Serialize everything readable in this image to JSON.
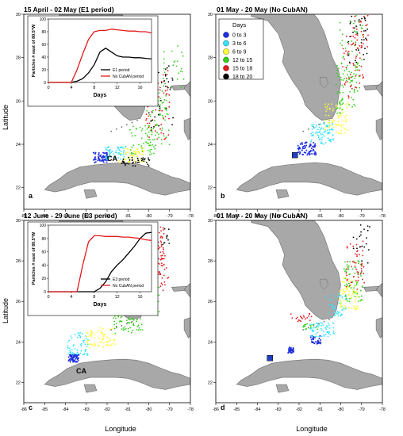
{
  "colors": {
    "sea": "#ffffff",
    "land": "#a8a8a8",
    "coast": "#6e6e6e",
    "frame": "#000000",
    "days_0_3": "#1f2fe0",
    "days_3_6": "#34e2ff",
    "days_6_9": "#ffff33",
    "days_12_15": "#33d11a",
    "days_15_18": "#e31a1c",
    "days_18_20": "#000000",
    "inset_black": "#000000",
    "inset_red": "#e31a1c",
    "marker": "#1f3fbf"
  },
  "axis_labels": {
    "x": "Longitude",
    "y": "Latitude"
  },
  "ticks": {
    "lon": [
      "-86",
      "-85",
      "-84",
      "-83",
      "-82",
      "-81",
      "-80",
      "-79",
      "-78"
    ],
    "lat": [
      "22",
      "24",
      "26",
      "28",
      "30"
    ]
  },
  "panels": [
    {
      "id": "a",
      "title": "15 April - 02 May (E1 period)",
      "letter": "a",
      "site_label": "CA"
    },
    {
      "id": "b",
      "title": "01 May - 20 May (No CubAN)",
      "letter": "b"
    },
    {
      "id": "c",
      "title": "12 June - 29 June (E3 period)",
      "letter": "c",
      "site_label": "CA"
    },
    {
      "id": "d",
      "title": "01 May - 20 May (No CubAN)",
      "letter": "d"
    }
  ],
  "legend": {
    "title": "Days",
    "items": [
      {
        "label": "0  to  3",
        "color": "#1f2fe0"
      },
      {
        "label": "3  to  6",
        "color": "#34e2ff"
      },
      {
        "label": "6  to  9",
        "color": "#ffff33"
      },
      {
        "label": "12  to  15",
        "color": "#33d11a"
      },
      {
        "label": "15  to  18",
        "color": "#e31a1c"
      },
      {
        "label": "18  to  20",
        "color": "#000000"
      }
    ]
  },
  "chart_data": [
    {
      "type": "line",
      "panel": "a",
      "xlabel": "Days",
      "ylabel": "Particles # east of 80.5°W",
      "xlim": [
        0,
        18
      ],
      "ylim": [
        0,
        100
      ],
      "x_ticks": [
        0,
        4,
        8,
        12,
        16
      ],
      "series": [
        {
          "name": "E1 period",
          "color": "#000000",
          "x": [
            0,
            4,
            5,
            6,
            7,
            8,
            9,
            10,
            11,
            12,
            13,
            14,
            15,
            16,
            17,
            18
          ],
          "y": [
            0,
            0,
            2,
            6,
            15,
            28,
            48,
            54,
            48,
            42,
            40,
            40,
            39,
            39,
            38,
            37
          ]
        },
        {
          "name": "No CubAN period",
          "color": "#e31a1c",
          "x": [
            0,
            4,
            5,
            6,
            7,
            8,
            9,
            10,
            11,
            12,
            13,
            14,
            15,
            16,
            17,
            18
          ],
          "y": [
            0,
            0,
            20,
            45,
            68,
            80,
            82,
            82,
            84,
            83,
            82,
            81,
            81,
            80,
            80,
            78
          ]
        }
      ]
    },
    {
      "type": "line",
      "panel": "c",
      "xlabel": "Days",
      "ylabel": "Particles # east of 80.5°W",
      "xlim": [
        0,
        18
      ],
      "ylim": [
        0,
        100
      ],
      "x_ticks": [
        0,
        4,
        8,
        12,
        16
      ],
      "series": [
        {
          "name": "E3 period",
          "color": "#000000",
          "x": [
            0,
            8,
            9,
            10,
            11,
            12,
            13,
            14,
            15,
            16,
            17,
            18
          ],
          "y": [
            0,
            0,
            5,
            15,
            30,
            40,
            48,
            58,
            68,
            80,
            88,
            89
          ]
        },
        {
          "name": "No CubAN period",
          "color": "#e31a1c",
          "x": [
            0,
            5,
            6,
            7,
            8,
            9,
            10,
            11,
            12,
            13,
            14,
            15,
            16,
            17,
            18
          ],
          "y": [
            0,
            0,
            40,
            75,
            84,
            84,
            83,
            83,
            83,
            82,
            82,
            81,
            80,
            78,
            77
          ]
        }
      ]
    }
  ]
}
